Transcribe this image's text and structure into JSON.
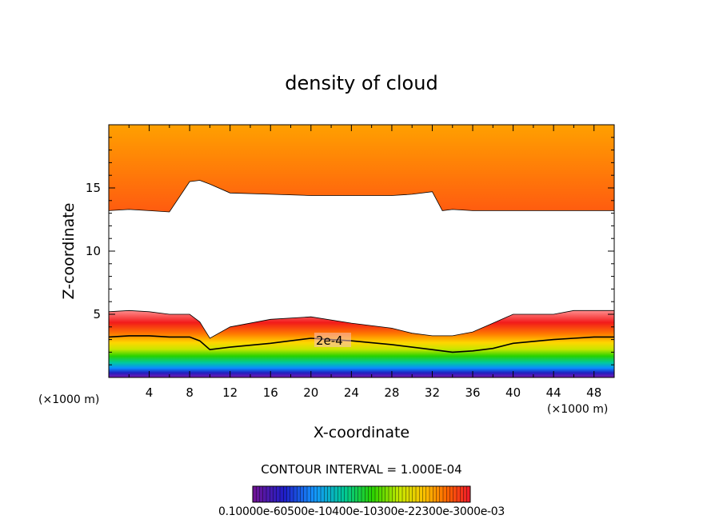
{
  "chart_data": {
    "type": "heatmap",
    "title": "density of cloud",
    "xlabel": "X-coordinate",
    "ylabel": "Z-coordinate",
    "x_unit": "(×1000 m)",
    "x_ticks": [
      4,
      8,
      12,
      16,
      20,
      24,
      28,
      32,
      36,
      40,
      44,
      48
    ],
    "y_ticks": [
      5,
      10,
      15
    ],
    "xlim": [
      0,
      50
    ],
    "ylim": [
      0,
      20
    ],
    "contour_label": "2e-4",
    "contour_interval_text": "CONTOUR INTERVAL = 1.000E-04",
    "colorbar_text": "0.10000e-60500e-10400e-10300e-22300e-3000e-03",
    "colorbar_range": [
      0,
      0.001
    ],
    "colorbar_steps": 64,
    "bands": {
      "x": [
        0,
        2,
        4,
        6,
        8,
        9,
        10,
        12,
        16,
        20,
        24,
        28,
        30,
        32,
        33,
        34,
        36,
        38,
        40,
        44,
        46,
        48,
        50
      ],
      "lower_cloud_top": [
        5.2,
        5.3,
        5.2,
        5.0,
        5.0,
        4.4,
        3.1,
        4.0,
        4.6,
        4.8,
        4.3,
        3.9,
        3.5,
        3.3,
        3.3,
        3.3,
        3.6,
        4.3,
        5.0,
        5.0,
        5.3,
        5.3,
        5.3
      ],
      "contour_2e4": [
        3.2,
        3.3,
        3.3,
        3.2,
        3.2,
        2.9,
        2.2,
        2.4,
        2.7,
        3.1,
        2.9,
        2.6,
        2.4,
        2.2,
        2.1,
        2.0,
        2.1,
        2.3,
        2.7,
        3.0,
        3.1,
        3.2,
        3.2
      ],
      "lower_cloud_base": [
        0.9,
        1.0,
        0.8,
        0.7,
        0.6,
        0.7,
        0.9,
        0.9,
        0.8,
        0.8,
        0.6,
        0.6,
        0.5,
        0.5,
        0.6,
        0.7,
        0.8,
        0.9,
        1.0,
        1.0,
        1.0,
        1.0,
        1.0
      ],
      "upper_cloud_base": [
        13.2,
        13.3,
        13.2,
        13.1,
        15.5,
        15.6,
        15.3,
        14.6,
        14.5,
        14.4,
        14.4,
        14.4,
        14.5,
        14.7,
        13.2,
        13.3,
        13.2,
        13.2,
        13.2,
        13.2,
        13.2,
        13.2,
        13.2
      ]
    }
  }
}
